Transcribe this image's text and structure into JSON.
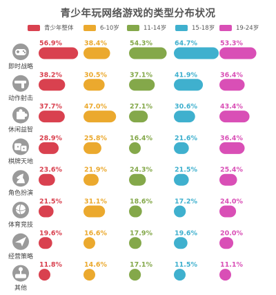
{
  "chart_data": {
    "type": "bar",
    "title": "青少年玩网络游戏的类型分布状况",
    "categories": [
      "即时战略",
      "动作射击",
      "休闲益智",
      "棋牌天地",
      "角色扮演",
      "体育竞技",
      "经营策略",
      "其他"
    ],
    "icons": [
      "gamepad-icon",
      "gun-icon",
      "puzzle-icon",
      "dice-icon",
      "knight-icon",
      "ball-icon",
      "airplane-icon",
      "joystick-icon"
    ],
    "series": [
      {
        "name": "青少年整体",
        "color": "#d9414f",
        "values": [
          56.9,
          38.2,
          37.7,
          28.9,
          23.6,
          21.5,
          19.6,
          11.8
        ]
      },
      {
        "name": "6-10岁",
        "color": "#eba92e",
        "values": [
          38.4,
          30.5,
          47.0,
          25.8,
          21.9,
          31.1,
          16.6,
          14.6
        ]
      },
      {
        "name": "11-14岁",
        "color": "#84a84a",
        "values": [
          54.3,
          37.1,
          27.1,
          16.4,
          24.3,
          18.6,
          17.9,
          17.1
        ]
      },
      {
        "name": "15-18岁",
        "color": "#3fb0ce",
        "values": [
          64.7,
          41.9,
          30.6,
          21.6,
          21.5,
          17.2,
          19.6,
          11.5
        ]
      },
      {
        "name": "19-24岁",
        "color": "#d94fb6",
        "values": [
          53.3,
          36.4,
          43.4,
          36.4,
          25.4,
          24.0,
          20.0,
          11.1
        ]
      }
    ],
    "value_labels": [
      [
        "56.9%",
        "38.2%",
        "37.7%",
        "28.9%",
        "23.6%",
        "21.5%",
        "19.6%",
        "11.8%"
      ],
      [
        "38.4%",
        "30.5%",
        "47.0%",
        "25.8%",
        "21.9%",
        "31.1%",
        "16.6%",
        "14.6%"
      ],
      [
        "54.3%",
        "37.1%",
        "27.1%",
        "16.4%",
        "24.3%",
        "18.6%",
        "17.9%",
        "17.1%"
      ],
      [
        "64.7%",
        "41.9%",
        "30.6%",
        "21.6%",
        "21.5%",
        "17.2%",
        "19.6%",
        "11.5%"
      ],
      [
        "53.3%",
        "36.4%",
        "43.4%",
        "36.4%",
        "25.4%",
        "24.0%",
        "20.0%",
        "11.1%"
      ]
    ],
    "icon_color": "#9a9a9a"
  }
}
